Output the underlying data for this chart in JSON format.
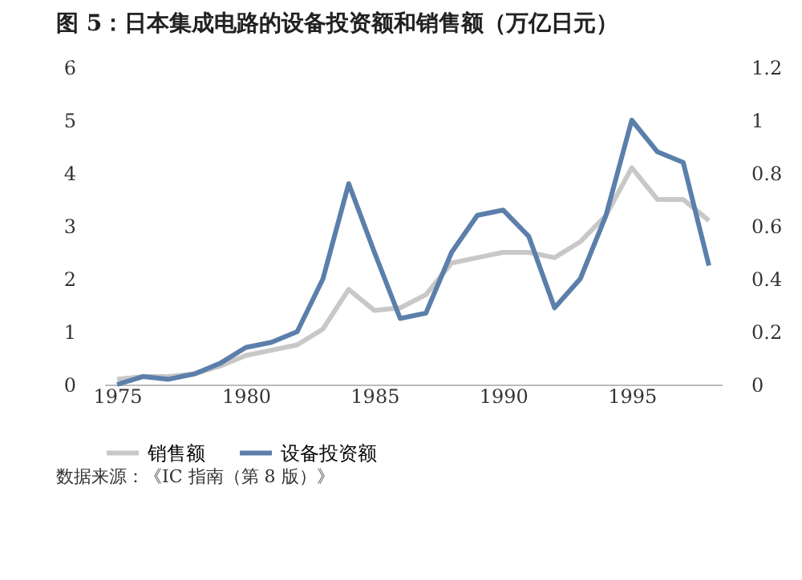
{
  "chart_data": {
    "type": "line",
    "title": "图 5：日本集成电路的设备投资额和销售额（万亿日元）",
    "x": [
      1975,
      1976,
      1977,
      1978,
      1979,
      1980,
      1981,
      1982,
      1983,
      1984,
      1985,
      1986,
      1987,
      1988,
      1989,
      1990,
      1991,
      1992,
      1993,
      1994,
      1995,
      1996,
      1997,
      1998
    ],
    "series": [
      {
        "name": "销售额",
        "color": "#c8c8c8",
        "values": [
          0.1,
          0.15,
          0.15,
          0.2,
          0.35,
          0.55,
          0.65,
          0.75,
          1.05,
          1.8,
          1.4,
          1.45,
          1.7,
          2.3,
          2.4,
          2.5,
          2.5,
          2.4,
          2.7,
          3.2,
          4.1,
          3.5,
          3.5,
          3.1
        ]
      },
      {
        "name": "设备投资额",
        "color": "#5b7faa",
        "axis": "y2",
        "values": [
          0.0,
          0.03,
          0.02,
          0.04,
          0.08,
          0.14,
          0.16,
          0.2,
          0.4,
          0.76,
          0.5,
          0.25,
          0.27,
          0.5,
          0.64,
          0.66,
          0.56,
          0.29,
          0.4,
          0.64,
          1.0,
          0.88,
          0.84,
          0.45
        ]
      }
    ],
    "xlim": [
      1974.5,
      1998.5
    ],
    "xticks": [
      1975,
      1980,
      1985,
      1990,
      1995
    ],
    "ylim": [
      0,
      6
    ],
    "yticks": [
      0,
      1,
      2,
      3,
      4,
      5,
      6
    ],
    "y2lim": [
      0,
      1.2
    ],
    "y2ticks": [
      0,
      0.2,
      0.4,
      0.6,
      0.8,
      1,
      1.2
    ],
    "grid": false,
    "legend": "bottom",
    "marker": "none",
    "line_style": "solid",
    "annotations": [
      "数据来源：《IC 指南（第 8 版）》"
    ]
  }
}
